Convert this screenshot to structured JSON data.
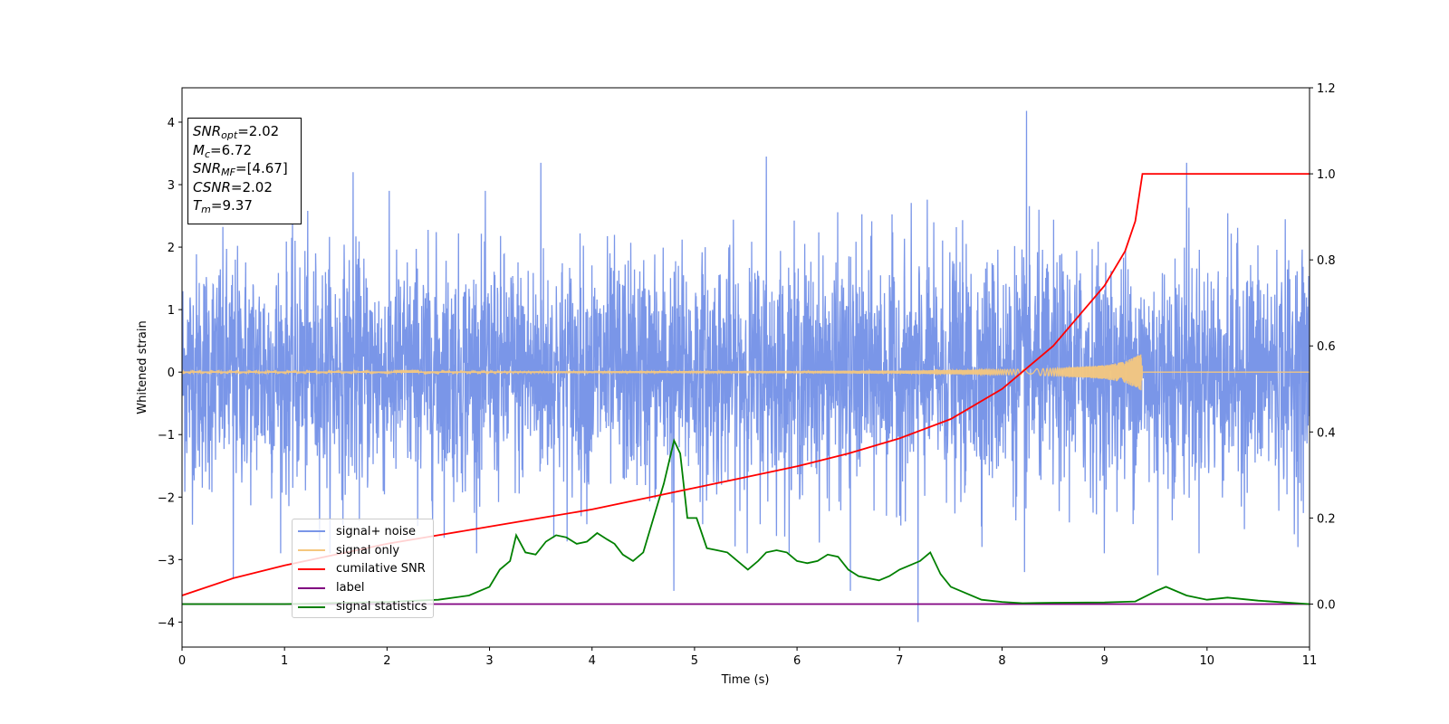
{
  "chart_data": {
    "type": "line",
    "xlabel": "Time (s)",
    "ylabel": "Whitened strain",
    "xlim": [
      0,
      11
    ],
    "ylim": [
      -4.4,
      4.55
    ],
    "y2lim": [
      -0.1,
      1.2
    ],
    "x_ticks": [
      "0",
      "1",
      "2",
      "3",
      "4",
      "5",
      "6",
      "7",
      "8",
      "9",
      "10",
      "11"
    ],
    "y_ticks": [
      "−4",
      "−3",
      "−2",
      "−1",
      "0",
      "1",
      "2",
      "3",
      "4"
    ],
    "y2_ticks": [
      "0.0",
      "0.2",
      "0.4",
      "0.6",
      "0.8",
      "1.0",
      "1.2"
    ],
    "grid": false,
    "legend_placement": "lower-left",
    "stats": {
      "snr_opt_sym": "SNR",
      "snr_opt_sub": "opt",
      "snr_opt_val": "=2.02",
      "mc_sym": "M",
      "mc_sub": "c",
      "mc_val": "=6.72",
      "snr_mf_sym": "SNR",
      "snr_mf_sub": "MF",
      "snr_mf_val": "=[4.67]",
      "csnr_sym": "CSNR",
      "csnr_val": "=2.02",
      "tm_sym": "T",
      "tm_sub": "m",
      "tm_val": "=9.37"
    },
    "series": [
      {
        "name": "signal+ noise",
        "color": "#7a96e8",
        "axis": "left",
        "noise_amplitude_typical": 1.5,
        "notable_spikes": [
          [
            0.5,
            -3.3
          ],
          [
            1.67,
            3.2
          ],
          [
            3.5,
            3.35
          ],
          [
            4.8,
            -3.5
          ],
          [
            5.7,
            3.45
          ],
          [
            7.18,
            -4.0
          ],
          [
            8.24,
            4.18
          ],
          [
            9.8,
            3.35
          ],
          [
            9.52,
            -3.25
          ],
          [
            6.52,
            -3.5
          ],
          [
            8.22,
            -3.2
          ]
        ]
      },
      {
        "name": "signal only",
        "color": "#f5c77e",
        "axis": "left",
        "envelope": [
          [
            0,
            0.01
          ],
          [
            2,
            0.01
          ],
          [
            4,
            0.015
          ],
          [
            6,
            0.02
          ],
          [
            7,
            0.025
          ],
          [
            8,
            0.04
          ],
          [
            8.5,
            0.06
          ],
          [
            9,
            0.11
          ],
          [
            9.2,
            0.17
          ],
          [
            9.3,
            0.25
          ],
          [
            9.36,
            0.3
          ],
          [
            9.37,
            0
          ]
        ]
      },
      {
        "name": "cumilative SNR",
        "color": "#ff0000",
        "axis": "right",
        "x": [
          0,
          0.5,
          1,
          1.5,
          2,
          2.5,
          3,
          3.5,
          4,
          4.5,
          5,
          5.5,
          6,
          6.5,
          7,
          7.5,
          8,
          8.5,
          9,
          9.2,
          9.3,
          9.37,
          11
        ],
        "y": [
          0.02,
          0.06,
          0.09,
          0.115,
          0.14,
          0.16,
          0.18,
          0.2,
          0.22,
          0.245,
          0.27,
          0.295,
          0.32,
          0.35,
          0.385,
          0.43,
          0.5,
          0.6,
          0.74,
          0.82,
          0.89,
          1.0,
          1.0
        ]
      },
      {
        "name": "label",
        "color": "#800080",
        "axis": "right",
        "x": [
          0,
          11
        ],
        "y": [
          0,
          0
        ]
      },
      {
        "name": "signal statistics",
        "color": "#008000",
        "axis": "right",
        "x": [
          0,
          1,
          2,
          2.5,
          2.8,
          3,
          3.1,
          3.2,
          3.26,
          3.35,
          3.45,
          3.55,
          3.65,
          3.75,
          3.85,
          3.95,
          4.05,
          4.15,
          4.22,
          4.3,
          4.4,
          4.5,
          4.6,
          4.7,
          4.8,
          4.86,
          4.93,
          5.02,
          5.12,
          5.22,
          5.32,
          5.42,
          5.52,
          5.62,
          5.7,
          5.8,
          5.9,
          6.0,
          6.1,
          6.2,
          6.3,
          6.4,
          6.5,
          6.6,
          6.8,
          6.9,
          7.0,
          7.1,
          7.2,
          7.3,
          7.4,
          7.5,
          7.6,
          7.8,
          8.0,
          8.2,
          8.5,
          9.0,
          9.3,
          9.5,
          9.6,
          9.8,
          10.0,
          10.2,
          10.5,
          11
        ],
        "y": [
          0,
          0,
          0.005,
          0.01,
          0.02,
          0.04,
          0.08,
          0.1,
          0.16,
          0.12,
          0.115,
          0.145,
          0.16,
          0.155,
          0.14,
          0.145,
          0.165,
          0.15,
          0.14,
          0.115,
          0.1,
          0.12,
          0.2,
          0.28,
          0.38,
          0.35,
          0.2,
          0.2,
          0.13,
          0.125,
          0.12,
          0.1,
          0.08,
          0.1,
          0.12,
          0.125,
          0.12,
          0.1,
          0.095,
          0.1,
          0.115,
          0.11,
          0.08,
          0.065,
          0.055,
          0.065,
          0.08,
          0.09,
          0.1,
          0.12,
          0.07,
          0.04,
          0.03,
          0.01,
          0.005,
          0.002,
          0.003,
          0.004,
          0.006,
          0.03,
          0.04,
          0.02,
          0.01,
          0.015,
          0.008,
          0.0
        ]
      }
    ]
  }
}
